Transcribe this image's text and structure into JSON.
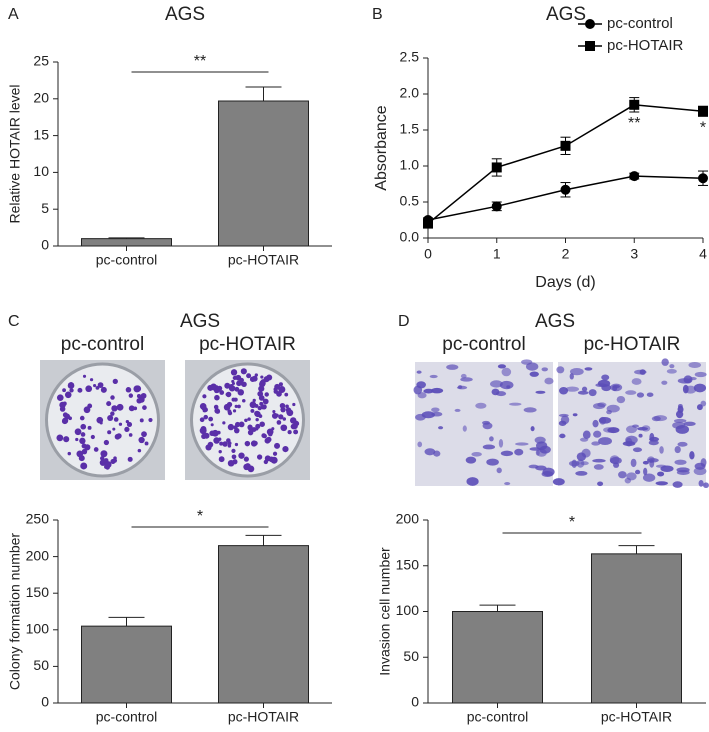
{
  "chart_data": [
    {
      "type": "bar",
      "panel": "A",
      "title": "AGS",
      "ylabel": "Relative HOTAIR level",
      "categories": [
        "pc-control",
        "pc-HOTAIR"
      ],
      "values": [
        1,
        19.7
      ],
      "errors": [
        0.1,
        1.9
      ],
      "color": "#808080",
      "ylim": [
        0,
        25
      ],
      "yticks": [
        0,
        5,
        10,
        15,
        20,
        25
      ],
      "annotation": "**"
    },
    {
      "type": "line",
      "panel": "B",
      "title": "AGS",
      "xlabel": "Days (d)",
      "ylabel": "Absorbance",
      "x": [
        0,
        1,
        2,
        3,
        4
      ],
      "series": [
        {
          "name": "pc-control",
          "color": "#000000",
          "marker": "circle",
          "values": [
            0.25,
            0.44,
            0.67,
            0.86,
            0.83
          ],
          "errors": [
            0.03,
            0.06,
            0.1,
            0.04,
            0.1
          ]
        },
        {
          "name": "pc-HOTAIR",
          "color": "#000000",
          "marker": "square",
          "values": [
            0.2,
            0.98,
            1.28,
            1.85,
            1.76
          ],
          "errors": [
            0.05,
            0.12,
            0.12,
            0.1,
            0.07
          ]
        }
      ],
      "xlim": [
        0,
        4
      ],
      "xticks": [
        0,
        1,
        2,
        3,
        4
      ],
      "ylim": [
        0,
        2.5
      ],
      "yticks": [
        {
          "value": 0,
          "label": "0.0"
        },
        0.5,
        {
          "value": 1,
          "label": "1.0"
        },
        1.5,
        {
          "value": 2,
          "label": "2.0"
        },
        2.5
      ],
      "annotations": [
        {
          "x": 3,
          "text": "**"
        },
        {
          "x": 4,
          "text": "*"
        }
      ],
      "legend": "top-right"
    },
    {
      "type": "bar",
      "panel": "C",
      "title": "AGS",
      "image_labels": [
        "pc-control",
        "pc-HOTAIR"
      ],
      "ylabel": "Colony formation number",
      "categories": [
        "pc-control",
        "pc-HOTAIR"
      ],
      "values": [
        105,
        215
      ],
      "errors": [
        12,
        14
      ],
      "color": "#808080",
      "ylim": [
        0,
        250
      ],
      "yticks": [
        0,
        50,
        100,
        150,
        200,
        250
      ],
      "annotation": "*"
    },
    {
      "type": "bar",
      "panel": "D",
      "title": "AGS",
      "image_labels": [
        "pc-control",
        "pc-HOTAIR"
      ],
      "ylabel": "Invasion cell number",
      "categories": [
        "pc-control",
        "pc-HOTAIR"
      ],
      "values": [
        100,
        163
      ],
      "errors": [
        7,
        9
      ],
      "color": "#808080",
      "ylim": [
        0,
        200
      ],
      "yticks": [
        0,
        50,
        100,
        150,
        200
      ],
      "annotation": "*"
    }
  ]
}
